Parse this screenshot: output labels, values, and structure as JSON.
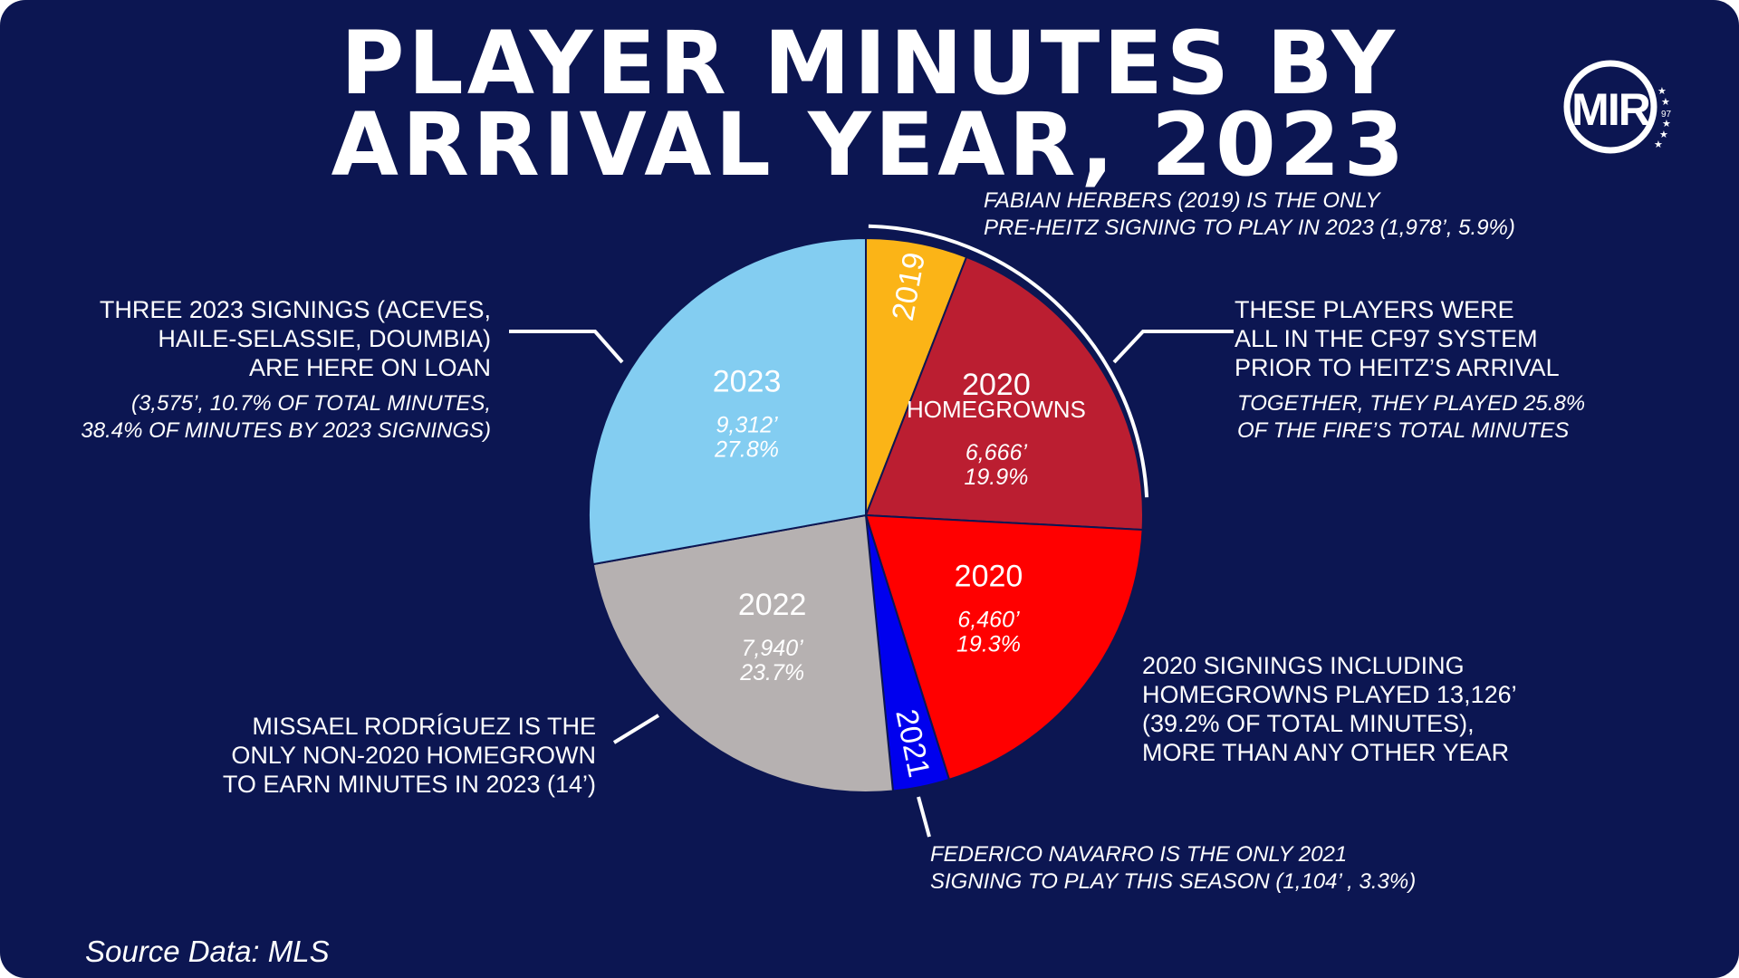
{
  "title_lines": [
    "PLAYER MINUTES BY",
    "ARRIVAL YEAR, 2023"
  ],
  "logo": {
    "text": "MIR",
    "year_text": "97",
    "stars": 5
  },
  "annotations": {
    "herbers": [
      "FABIAN HERBERS (2019) IS THE ONLY",
      "PRE-HEITZ  SIGNING TO PLAY IN 2023 (1,978’, 5.9%)"
    ],
    "loan_main": [
      "THREE 2023 SIGNINGS (ACEVES,",
      "HAILE-SELASSIE, DOUMBIA)",
      "ARE HERE ON LOAN"
    ],
    "loan_sub": [
      "(3,575’, 10.7% OF TOTAL MINUTES,",
      "38.4%  OF MINUTES BY 2023 SIGNINGS)"
    ],
    "system_main": [
      "THESE PLAYERS WERE",
      "ALL IN THE CF97 SYSTEM",
      "PRIOR TO HEITZ’S ARRIVAL"
    ],
    "system_sub": [
      "TOGETHER, THEY PLAYED 25.8%",
      "OF THE FIRE’S TOTAL MINUTES"
    ],
    "signings_2020": [
      "2020 SIGNINGS INCLUDING",
      "HOMEGROWNS PLAYED 13,126’",
      "(39.2% OF TOTAL MINUTES),",
      "MORE THAN ANY OTHER YEAR"
    ],
    "rodriguez": [
      "MISSAEL RODRÍGUEZ IS THE",
      "ONLY NON-2020 HOMEGROWN",
      "TO EARN MINUTES IN 2023 (14’)"
    ],
    "navarro": [
      "FEDERICO NAVARRO IS THE ONLY 2021",
      "SIGNING TO PLAY THIS SEASON (1,104’ , 3.3%)"
    ]
  },
  "source": "Source Data: MLS",
  "chart_data": {
    "type": "pie",
    "unit": "minutes",
    "slices": [
      {
        "label": "2019",
        "sublabel": "",
        "value": 1978,
        "value_label": "",
        "percent_label": "",
        "color": "#fbb417",
        "label_style": "rotated"
      },
      {
        "label": "2020",
        "sublabel": "HOMEGROWNS",
        "value": 6666,
        "value_label": "6,666’",
        "percent_label": "19.9%",
        "color": "#bb1e31",
        "label_style": "stacked"
      },
      {
        "label": "2020",
        "sublabel": "",
        "value": 6460,
        "value_label": "6,460’",
        "percent_label": "19.3%",
        "color": "#ff0000",
        "label_style": "stacked"
      },
      {
        "label": "2021",
        "sublabel": "",
        "value": 1104,
        "value_label": "",
        "percent_label": "",
        "color": "#0000ee",
        "label_style": "rotated"
      },
      {
        "label": "2022",
        "sublabel": "",
        "value": 7940,
        "value_label": "7,940’",
        "percent_label": "23.7%",
        "color": "#b6b1b1",
        "label_style": "stacked"
      },
      {
        "label": "2023",
        "sublabel": "",
        "value": 9312,
        "value_label": "9,312’",
        "percent_label": "27.8%",
        "color": "#83cdf1",
        "label_style": "stacked"
      }
    ],
    "colors": {
      "background": "#0c1652",
      "text": "#ffffff",
      "slice_border": "#0c1652"
    }
  }
}
